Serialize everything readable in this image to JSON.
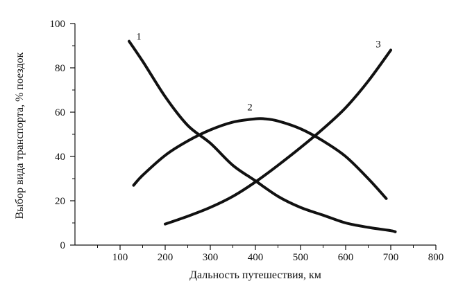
{
  "chart_data": {
    "type": "line",
    "title": "",
    "xlabel": "Дальность путешествия, км",
    "ylabel": "Выбор вида транспорта, % поездок",
    "xlim": [
      0,
      800
    ],
    "ylim": [
      0,
      100
    ],
    "x_ticks": [
      100,
      200,
      300,
      400,
      500,
      600,
      700,
      800
    ],
    "y_ticks": [
      0,
      20,
      40,
      60,
      80,
      100
    ],
    "grid": false,
    "line_color": "#111111",
    "series": [
      {
        "label": "1",
        "x": [
          120,
          150,
          200,
          250,
          300,
          350,
          400,
          450,
          500,
          550,
          600,
          650,
          700,
          710
        ],
        "y": [
          92,
          83,
          67,
          54,
          46,
          36,
          29,
          22,
          17,
          13.5,
          10,
          8,
          6.5,
          6
        ]
      },
      {
        "label": "2",
        "x": [
          130,
          150,
          200,
          250,
          300,
          350,
          400,
          420,
          450,
          500,
          550,
          600,
          650,
          690
        ],
        "y": [
          27,
          31.5,
          40.5,
          47,
          52,
          55.5,
          57,
          57,
          56,
          52.5,
          47,
          40,
          30,
          21
        ]
      },
      {
        "label": "3",
        "x": [
          200,
          250,
          300,
          350,
          400,
          450,
          500,
          550,
          600,
          650,
          700
        ],
        "y": [
          9.5,
          13,
          17,
          22,
          28.5,
          36,
          44,
          52.5,
          62,
          74,
          88
        ]
      }
    ]
  }
}
